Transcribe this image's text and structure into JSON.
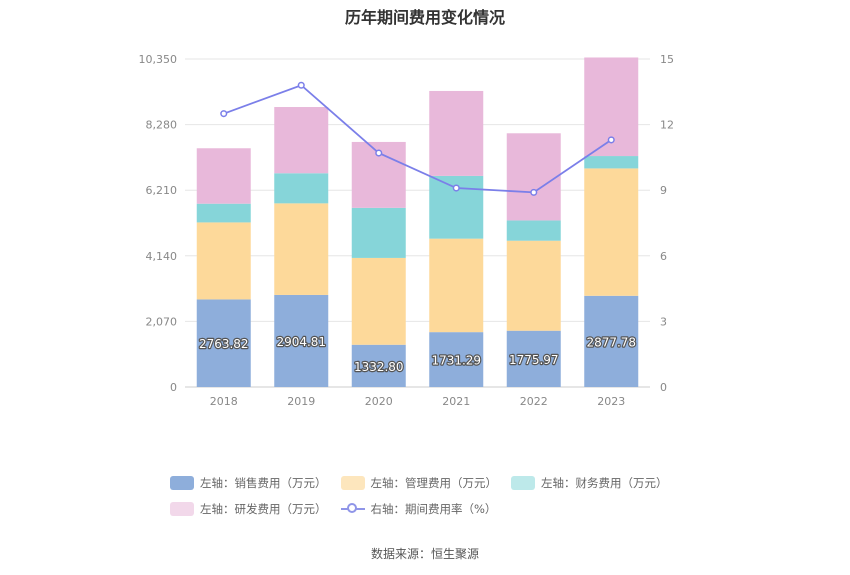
{
  "chart_data": {
    "type": "bar",
    "title": "历年期间费用变化情况",
    "categories": [
      "2018",
      "2019",
      "2020",
      "2021",
      "2022",
      "2023"
    ],
    "series": [
      {
        "name": "左轴：销售费用（万元）",
        "axis": "left",
        "values": [
          2763.82,
          2904.81,
          1332.8,
          1731.29,
          1775.97,
          2877.78
        ],
        "color": "#8eaedb"
      },
      {
        "name": "左轴：管理费用（万元）",
        "axis": "left",
        "values": [
          2430,
          2890,
          2740,
          2950,
          2840,
          4020
        ],
        "color": "#fdd99a"
      },
      {
        "name": "左轴：财务费用（万元）",
        "axis": "left",
        "values": [
          590,
          950,
          1580,
          1980,
          640,
          390
        ],
        "color": "#86d5d9"
      },
      {
        "name": "左轴：研发费用（万元）",
        "axis": "left",
        "values": [
          1750,
          2090,
          2080,
          2680,
          2750,
          3110
        ],
        "color": "#e8b8da"
      },
      {
        "name": "右轴：期间费用率（%）",
        "axis": "right",
        "type": "line",
        "values": [
          12.5,
          13.8,
          10.7,
          9.1,
          8.9,
          11.3
        ],
        "color": "#7b7fe9"
      }
    ],
    "left_axis": {
      "min": 0,
      "max": 10350,
      "ticks": [
        "0",
        "2,070",
        "4,140",
        "6,210",
        "8,280",
        "10,350"
      ]
    },
    "right_axis": {
      "min": 0,
      "max": 15,
      "ticks": [
        "0",
        "3",
        "6",
        "9",
        "12",
        "15"
      ]
    },
    "data_labels": [
      "2763.82",
      "2904.81",
      "1332.80",
      "1731.29",
      "1775.97",
      "2877.78"
    ],
    "grid": true,
    "legend_position": "bottom"
  },
  "source_text": "数据来源：恒生聚源"
}
